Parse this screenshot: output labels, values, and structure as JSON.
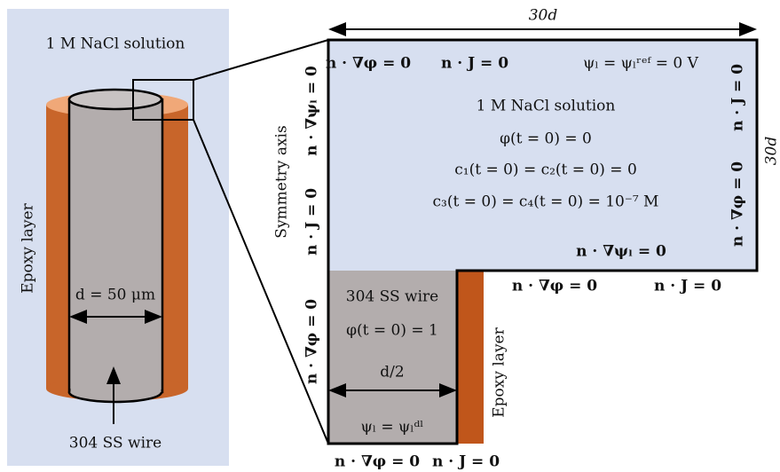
{
  "left_panel": {
    "title": "1 M NaCl solution",
    "epoxy_label": "Epoxy layer",
    "diameter_label": "d = 50 μm",
    "wire_label": "304 SS wire"
  },
  "domain": {
    "width_label": "30d",
    "height_label": "30d",
    "top_boundary": [
      "n · ∇φ = 0",
      "n · J = 0",
      "ψₗ = ψₗʳᵉᶠ = 0 V"
    ],
    "solution": [
      "1 M NaCl solution",
      "φ(t = 0) = 0",
      "c₁(t = 0) = c₂(t = 0) = 0",
      "c₃(t = 0) = c₄(t = 0) = 10⁻⁷ M",
      "n · ∇ψₗ = 0"
    ],
    "right_boundary": [
      "n · J = 0",
      "n · ∇φ = 0"
    ],
    "left_boundary": [
      "n · ∇ψₗ = 0",
      "n · J = 0",
      "n · ∇φ = 0"
    ],
    "symmetry_label": "Symmetry axis",
    "step_boundary": [
      "n · ∇φ = 0",
      "n · J = 0"
    ],
    "wire": [
      "304 SS wire",
      "φ(t = 0) = 1",
      "d/2",
      "ψₗ = ψₗᵈˡ"
    ],
    "epoxy_label": "Epoxy layer",
    "bottom_boundary": [
      "n · ∇φ = 0",
      "n · J = 0"
    ]
  }
}
